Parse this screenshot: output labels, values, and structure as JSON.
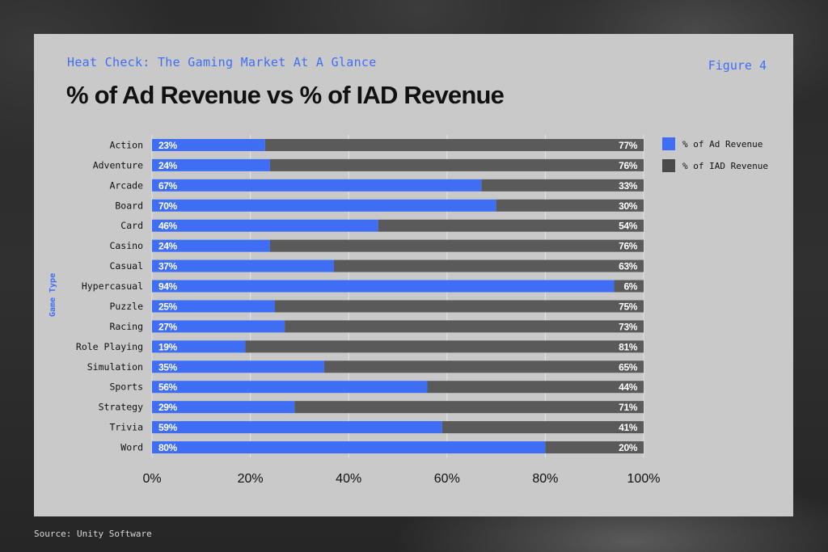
{
  "header": {
    "kicker": "Heat Check: The Gaming Market At A Glance",
    "figure_label": "Figure 4",
    "title": "% of Ad Revenue vs % of IAD Revenue"
  },
  "footer": {
    "source": "Source: Unity Software"
  },
  "colors": {
    "ad": "#3f6ef5",
    "iad": "#5a5a5a",
    "panel": "#c9c9c9",
    "accent_text": "#3f6ef5"
  },
  "chart_data": {
    "type": "bar",
    "orientation": "horizontal",
    "stacked": true,
    "ylabel": "Game Type",
    "xlim": [
      0,
      100
    ],
    "x_ticks": [
      "0%",
      "20%",
      "40%",
      "60%",
      "80%",
      "100%"
    ],
    "grid": true,
    "legend_position": "top-right",
    "categories": [
      "Action",
      "Adventure",
      "Arcade",
      "Board",
      "Card",
      "Casino",
      "Casual",
      "Hypercasual",
      "Puzzle",
      "Racing",
      "Role Playing",
      "Simulation",
      "Sports",
      "Strategy",
      "Trivia",
      "Word"
    ],
    "series": [
      {
        "name": "% of Ad Revenue",
        "values": [
          23,
          24,
          67,
          70,
          46,
          24,
          37,
          94,
          25,
          27,
          19,
          35,
          56,
          29,
          59,
          80
        ]
      },
      {
        "name": "% of IAD Revenue",
        "values": [
          77,
          76,
          33,
          30,
          54,
          76,
          63,
          6,
          75,
          73,
          81,
          65,
          44,
          71,
          41,
          20
        ]
      }
    ]
  }
}
